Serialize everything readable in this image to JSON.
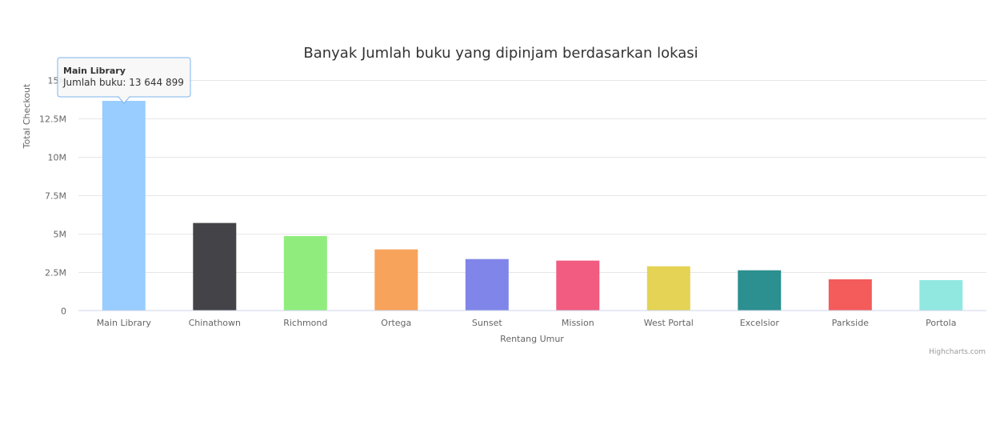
{
  "chart_data": {
    "type": "bar",
    "title": "Banyak Jumlah buku yang dipinjam berdasarkan lokasi",
    "xlabel": "Rentang Umur",
    "ylabel": "Total Checkout",
    "ylim": [
      0,
      15000000
    ],
    "y_ticks": [
      {
        "value": 0,
        "label": "0"
      },
      {
        "value": 2500000,
        "label": "2.5M"
      },
      {
        "value": 5000000,
        "label": "5M"
      },
      {
        "value": 7500000,
        "label": "7.5M"
      },
      {
        "value": 10000000,
        "label": "10M"
      },
      {
        "value": 12500000,
        "label": "12.5M"
      },
      {
        "value": 15000000,
        "label": "15M"
      }
    ],
    "categories": [
      "Main Library",
      "Chinathown",
      "Richmond",
      "Ortega",
      "Sunset",
      "Mission",
      "West Portal",
      "Excelsior",
      "Parkside",
      "Portola"
    ],
    "values": [
      13644899,
      5700000,
      4850000,
      3980000,
      3350000,
      3250000,
      2880000,
      2620000,
      2030000,
      1980000
    ],
    "colors": [
      "#99ccff",
      "#434348",
      "#90ed7d",
      "#f7a35c",
      "#8085e9",
      "#f15c80",
      "#e4d354",
      "#2b908f",
      "#f45b5b",
      "#91e8e1"
    ],
    "grid": true,
    "legend": "none",
    "tooltip": {
      "category_index": 0,
      "title": "Main Library",
      "text": "Jumlah buku: 13 644 899"
    },
    "credits": "Highcharts.com"
  }
}
